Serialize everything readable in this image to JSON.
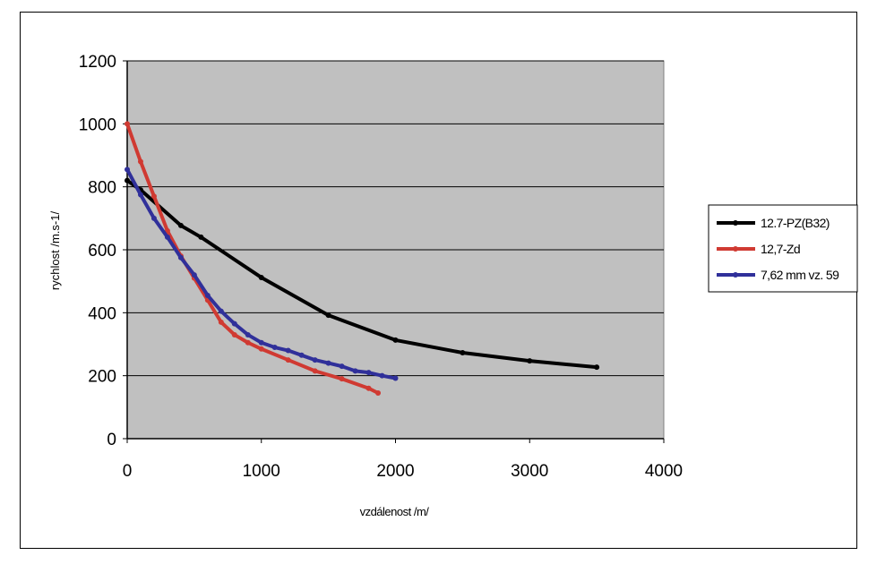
{
  "chart_data": {
    "type": "line",
    "title": "",
    "xlabel": "vzdálenost /m/",
    "ylabel": "rychlost /m.s-1/",
    "xlim": [
      0,
      4000
    ],
    "ylim": [
      0,
      1200
    ],
    "xticks": [
      0,
      1000,
      2000,
      3000,
      4000
    ],
    "yticks": [
      0,
      200,
      400,
      600,
      800,
      1000,
      1200
    ],
    "grid": "horizontal",
    "legend_position": "right",
    "series": [
      {
        "name": "12.7-PZ(B32)",
        "color": "#000000",
        "x": [
          0,
          100,
          400,
          550,
          1000,
          1500,
          2000,
          2500,
          3000,
          3500
        ],
        "y": [
          820,
          790,
          677,
          640,
          512,
          392,
          313,
          273,
          247,
          227
        ]
      },
      {
        "name": "12,7-Zd",
        "color": "#d03a32",
        "x": [
          0,
          100,
          200,
          300,
          400,
          500,
          600,
          700,
          800,
          900,
          1000,
          1200,
          1400,
          1600,
          1800,
          1870
        ],
        "y": [
          1000,
          880,
          770,
          660,
          580,
          510,
          440,
          370,
          330,
          305,
          285,
          250,
          215,
          190,
          160,
          145
        ]
      },
      {
        "name": "7,62 mm vz. 59",
        "color": "#30309a",
        "x": [
          0,
          100,
          200,
          300,
          400,
          500,
          600,
          700,
          800,
          900,
          1000,
          1100,
          1200,
          1300,
          1400,
          1500,
          1600,
          1700,
          1800,
          1900,
          2000
        ],
        "y": [
          855,
          775,
          700,
          640,
          575,
          520,
          455,
          405,
          365,
          330,
          305,
          290,
          280,
          265,
          250,
          240,
          230,
          215,
          210,
          200,
          192
        ]
      }
    ]
  }
}
